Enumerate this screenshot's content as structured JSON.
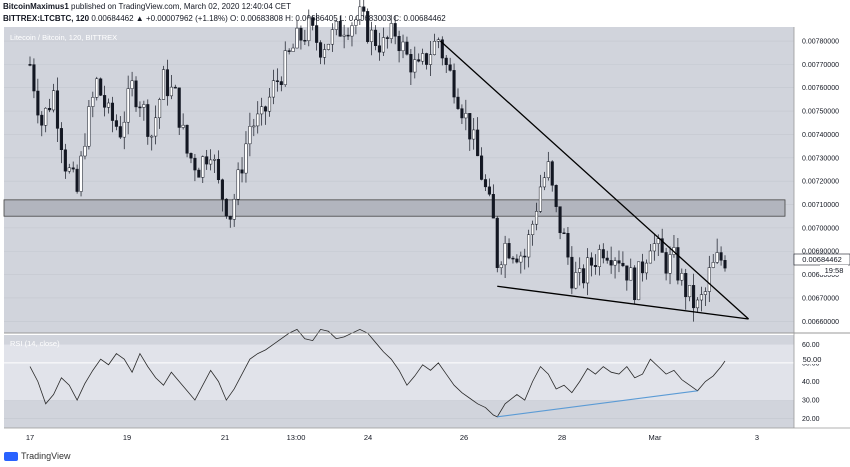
{
  "header": {
    "author": "BitcoinMaximus1",
    "published": "published on TradingView.com, March 02, 2020 12:40:04 CET",
    "symbol": "BITTREX:LTCBTC, 120",
    "ohlc": "0.00684462 ▲ +0.00007962 (+1.18%) O: 0.00683808 H: 0.00686405 L: 0.00683003 C: 0.00684462"
  },
  "footer": {
    "brand": "TradingView"
  },
  "chart_data": [
    {
      "type": "candlestick",
      "title": "Litecoin / Bitcoin, 120, BITTREX",
      "x_ticks": [
        "17",
        "19",
        "21",
        "13:00",
        "24",
        "26",
        "28",
        "Mar",
        "3"
      ],
      "y_ticks": [
        "0.00780000",
        "0.00770000",
        "0.00760000",
        "0.00750000",
        "0.00740000",
        "0.00730000",
        "0.00720000",
        "0.00710000",
        "0.00700000",
        "0.00690000",
        "0.00680000",
        "0.00670000",
        "0.00660000"
      ],
      "ylim": [
        0.00655,
        0.00786
      ],
      "last_price": "0.00684462",
      "countdown": "19:58",
      "support_zone": [
        0.00705,
        0.00712
      ],
      "colors": {
        "up": "#ffffff",
        "down": "#131722",
        "zone": "#b2b5be"
      },
      "trendlines": [
        {
          "name": "descending resistance",
          "from": [
            104.5,
            0.0078
          ],
          "to": [
            183,
            0.00661
          ]
        },
        {
          "name": "ascending support",
          "from": [
            119,
            0.00675
          ],
          "to": [
            183,
            0.00661
          ]
        }
      ],
      "close_path": [
        [
          0,
          0.0077
        ],
        [
          3,
          0.00745
        ],
        [
          6,
          0.00758
        ],
        [
          9,
          0.00728
        ],
        [
          12,
          0.00715
        ],
        [
          14,
          0.0074
        ],
        [
          17,
          0.00762
        ],
        [
          20,
          0.00748
        ],
        [
          23,
          0.00742
        ],
        [
          26,
          0.0076
        ],
        [
          28,
          0.00755
        ],
        [
          31,
          0.0074
        ],
        [
          34,
          0.00763
        ],
        [
          37,
          0.00756
        ],
        [
          40,
          0.00732
        ],
        [
          43,
          0.00726
        ],
        [
          46,
          0.00735
        ],
        [
          48,
          0.00718
        ],
        [
          51,
          0.00706
        ],
        [
          53,
          0.0072
        ],
        [
          56,
          0.00744
        ],
        [
          59,
          0.00746
        ],
        [
          62,
          0.0076
        ],
        [
          65,
          0.0077
        ],
        [
          68,
          0.0078
        ],
        [
          71,
          0.00785
        ],
        [
          74,
          0.00778
        ],
        [
          77,
          0.00782
        ],
        [
          80,
          0.00787
        ],
        [
          84,
          0.0079
        ],
        [
          87,
          0.00782
        ],
        [
          90,
          0.00778
        ],
        [
          93,
          0.00784
        ],
        [
          96,
          0.00773
        ],
        [
          99,
          0.00767
        ],
        [
          102,
          0.00776
        ],
        [
          104,
          0.00781
        ],
        [
          106,
          0.00769
        ],
        [
          108,
          0.00762
        ],
        [
          110,
          0.00752
        ],
        [
          112,
          0.00742
        ],
        [
          114,
          0.0073
        ],
        [
          116,
          0.00716
        ],
        [
          118,
          0.00702
        ],
        [
          119,
          0.00686
        ],
        [
          121,
          0.00693
        ],
        [
          124,
          0.0069
        ],
        [
          126,
          0.00688
        ],
        [
          128,
          0.00702
        ],
        [
          130,
          0.00718
        ],
        [
          132,
          0.00725
        ],
        [
          134,
          0.00706
        ],
        [
          136,
          0.00695
        ],
        [
          138,
          0.0068
        ],
        [
          140,
          0.00677
        ],
        [
          143,
          0.00685
        ],
        [
          146,
          0.00692
        ],
        [
          148,
          0.0069
        ],
        [
          150,
          0.00688
        ],
        [
          152,
          0.00682
        ],
        [
          154,
          0.00675
        ],
        [
          156,
          0.00684
        ],
        [
          158,
          0.00695
        ],
        [
          160,
          0.0069
        ],
        [
          162,
          0.00685
        ],
        [
          164,
          0.00686
        ],
        [
          166,
          0.00677
        ],
        [
          168,
          0.0067
        ],
        [
          170,
          0.00666
        ],
        [
          172,
          0.00672
        ],
        [
          173,
          0.0068
        ],
        [
          175,
          0.00686
        ],
        [
          177,
          0.00687
        ]
      ],
      "anchors": [
        {
          "x": 0,
          "label": "17",
          "pos": 30
        },
        {
          "x": 177,
          "label": "",
          "pos": 725
        }
      ]
    },
    {
      "type": "line",
      "title": "RSI (14, close)",
      "y_ticks": [
        "60.00",
        "50.00",
        "40.00",
        "30.00",
        "20.00"
      ],
      "ylim": [
        15,
        65
      ],
      "band": [
        30,
        70
      ],
      "last_value": "50.00",
      "colors": {
        "line": "#2b2b2b",
        "divergence": "#5b9bd5",
        "band": "#e1e3ea"
      },
      "divergence": {
        "from": [
          119,
          21
        ],
        "to": [
          170,
          35
        ]
      },
      "values_path": [
        [
          0,
          48
        ],
        [
          2,
          40
        ],
        [
          4,
          28
        ],
        [
          6,
          33
        ],
        [
          8,
          42
        ],
        [
          10,
          38
        ],
        [
          12,
          30
        ],
        [
          14,
          39
        ],
        [
          16,
          46
        ],
        [
          18,
          52
        ],
        [
          20,
          49
        ],
        [
          22,
          55
        ],
        [
          24,
          52
        ],
        [
          26,
          45
        ],
        [
          28,
          55
        ],
        [
          30,
          48
        ],
        [
          32,
          42
        ],
        [
          34,
          38
        ],
        [
          36,
          45
        ],
        [
          38,
          40
        ],
        [
          40,
          35
        ],
        [
          42,
          30
        ],
        [
          44,
          38
        ],
        [
          46,
          46
        ],
        [
          48,
          40
        ],
        [
          50,
          30
        ],
        [
          52,
          36
        ],
        [
          54,
          44
        ],
        [
          56,
          52
        ],
        [
          58,
          55
        ],
        [
          60,
          57
        ],
        [
          62,
          60
        ],
        [
          64,
          63
        ],
        [
          66,
          66
        ],
        [
          68,
          68
        ],
        [
          70,
          63
        ],
        [
          72,
          62
        ],
        [
          74,
          68
        ],
        [
          76,
          67
        ],
        [
          78,
          63
        ],
        [
          80,
          64
        ],
        [
          84,
          68
        ],
        [
          86,
          66
        ],
        [
          88,
          61
        ],
        [
          90,
          56
        ],
        [
          92,
          52
        ],
        [
          94,
          46
        ],
        [
          96,
          38
        ],
        [
          98,
          43
        ],
        [
          100,
          49
        ],
        [
          102,
          46
        ],
        [
          104,
          50
        ],
        [
          106,
          44
        ],
        [
          108,
          38
        ],
        [
          110,
          34
        ],
        [
          112,
          31
        ],
        [
          114,
          28
        ],
        [
          116,
          26
        ],
        [
          118,
          22
        ],
        [
          119,
          21
        ],
        [
          121,
          28
        ],
        [
          124,
          33
        ],
        [
          126,
          30
        ],
        [
          128,
          40
        ],
        [
          130,
          48
        ],
        [
          132,
          44
        ],
        [
          134,
          36
        ],
        [
          136,
          38
        ],
        [
          138,
          34
        ],
        [
          140,
          40
        ],
        [
          142,
          47
        ],
        [
          144,
          44
        ],
        [
          146,
          48
        ],
        [
          148,
          45
        ],
        [
          150,
          44
        ],
        [
          152,
          48
        ],
        [
          154,
          42
        ],
        [
          156,
          44
        ],
        [
          158,
          52
        ],
        [
          160,
          48
        ],
        [
          162,
          44
        ],
        [
          164,
          46
        ],
        [
          166,
          41
        ],
        [
          168,
          38
        ],
        [
          170,
          35
        ],
        [
          172,
          40
        ],
        [
          174,
          43
        ],
        [
          176,
          48
        ],
        [
          177,
          51
        ]
      ]
    }
  ]
}
